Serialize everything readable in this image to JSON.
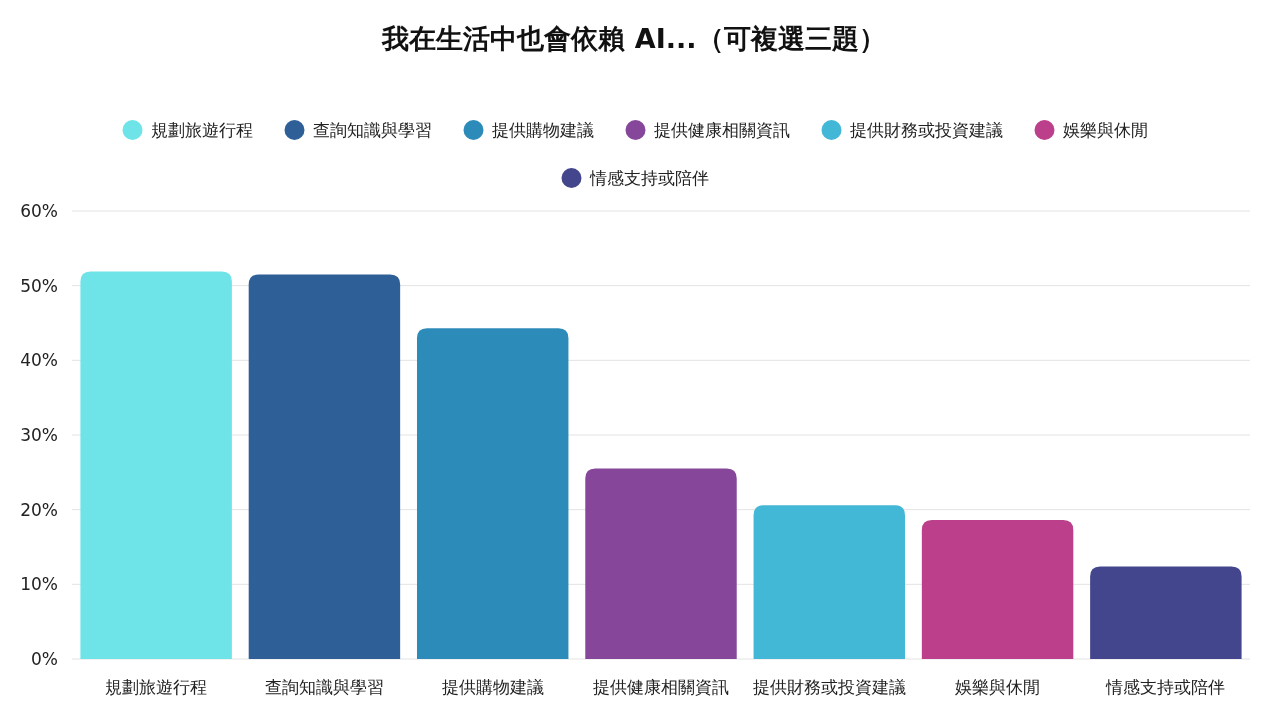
{
  "chart_data": {
    "type": "bar",
    "title": "我在生活中也會依賴 AI...（可複選三題）",
    "categories": [
      "規劃旅遊行程",
      "查詢知識與學習",
      "提供購物建議",
      "提供健康相關資訊",
      "提供財務或投資建議",
      "娛樂與休閒",
      "情感支持或陪伴"
    ],
    "series": [
      {
        "name": "規劃旅遊行程",
        "color": "#6ee3e8",
        "values": [
          51.9,
          null,
          null,
          null,
          null,
          null,
          null
        ]
      },
      {
        "name": "查詢知識與學習",
        "color": "#2e5f96",
        "values": [
          null,
          51.5,
          null,
          null,
          null,
          null,
          null
        ]
      },
      {
        "name": "提供購物建議",
        "color": "#2d8bb9",
        "values": [
          null,
          null,
          44.3,
          null,
          null,
          null,
          null
        ]
      },
      {
        "name": "提供健康相關資訊",
        "color": "#86479b",
        "values": [
          null,
          null,
          null,
          25.5,
          null,
          null,
          null
        ]
      },
      {
        "name": "提供財務或投資建議",
        "color": "#43b7d6",
        "values": [
          null,
          null,
          null,
          null,
          20.6,
          null,
          null
        ]
      },
      {
        "name": "娛樂與休閒",
        "color": "#bb3f8a",
        "values": [
          null,
          null,
          null,
          null,
          null,
          18.6,
          null
        ]
      },
      {
        "name": "情感支持或陪伴",
        "color": "#43468c",
        "values": [
          null,
          null,
          null,
          null,
          null,
          null,
          12.4
        ]
      }
    ],
    "ylim": [
      0,
      60
    ],
    "yticks": [
      {
        "value": 0,
        "label": "0%"
      },
      {
        "value": 10,
        "label": "10%"
      },
      {
        "value": 20,
        "label": "20%"
      },
      {
        "value": 30,
        "label": "30%"
      },
      {
        "value": 40,
        "label": "40%"
      },
      {
        "value": 50,
        "label": "50%"
      },
      {
        "value": 60,
        "label": "60%"
      }
    ],
    "grid": "y",
    "legend": "top"
  }
}
